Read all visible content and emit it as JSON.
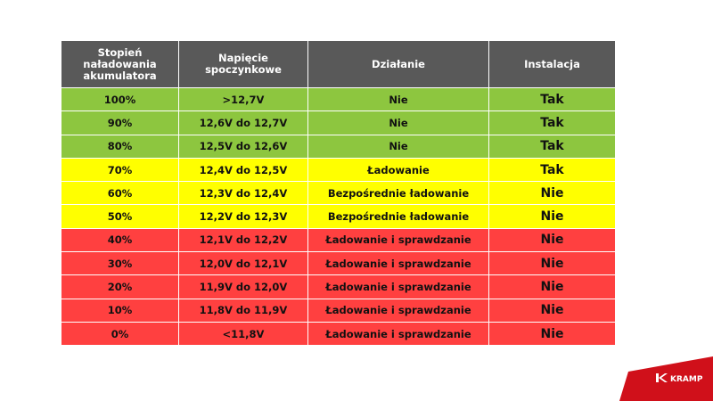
{
  "table": {
    "headers": [
      "Stopień naładowania akumulatora",
      "Napięcie spoczynkowe",
      "Działanie",
      "Instalacja"
    ],
    "rows": [
      {
        "charge": "100%",
        "voltage": ">12,7V",
        "action": "Nie",
        "install": "Tak",
        "status": "green"
      },
      {
        "charge": "90%",
        "voltage": "12,6V do 12,7V",
        "action": "Nie",
        "install": "Tak",
        "status": "green"
      },
      {
        "charge": "80%",
        "voltage": "12,5V do 12,6V",
        "action": "Nie",
        "install": "Tak",
        "status": "green"
      },
      {
        "charge": "70%",
        "voltage": "12,4V do 12,5V",
        "action": "Ładowanie",
        "install": "Tak",
        "status": "yellow"
      },
      {
        "charge": "60%",
        "voltage": "12,3V do 12,4V",
        "action": "Bezpośrednie  ładowanie",
        "install": "Nie",
        "status": "yellow"
      },
      {
        "charge": "50%",
        "voltage": "12,2V do 12,3V",
        "action": "Bezpośrednie  ładowanie",
        "install": "Nie",
        "status": "yellow"
      },
      {
        "charge": "40%",
        "voltage": "12,1V do 12,2V",
        "action": "Ładowanie i sprawdzanie",
        "install": "Nie",
        "status": "red"
      },
      {
        "charge": "30%",
        "voltage": "12,0V do 12,1V",
        "action": "Ładowanie i sprawdzanie",
        "install": "Nie",
        "status": "red"
      },
      {
        "charge": "20%",
        "voltage": "11,9V do 12,0V",
        "action": "Ładowanie i sprawdzanie",
        "install": "Nie",
        "status": "red"
      },
      {
        "charge": "10%",
        "voltage": "11,8V do 11,9V",
        "action": "Ładowanie i sprawdzanie",
        "install": "Nie",
        "status": "red"
      },
      {
        "charge": "0%",
        "voltage": "<11,8V",
        "action": "Ładowanie i sprawdzanie",
        "install": "Nie",
        "status": "red"
      }
    ]
  },
  "colors": {
    "header": "#595959",
    "green": "#8dc63f",
    "yellow": "#ffff00",
    "red": "#ff4040",
    "brand": "#d0101a"
  },
  "logo": {
    "text": "KRAMP"
  }
}
